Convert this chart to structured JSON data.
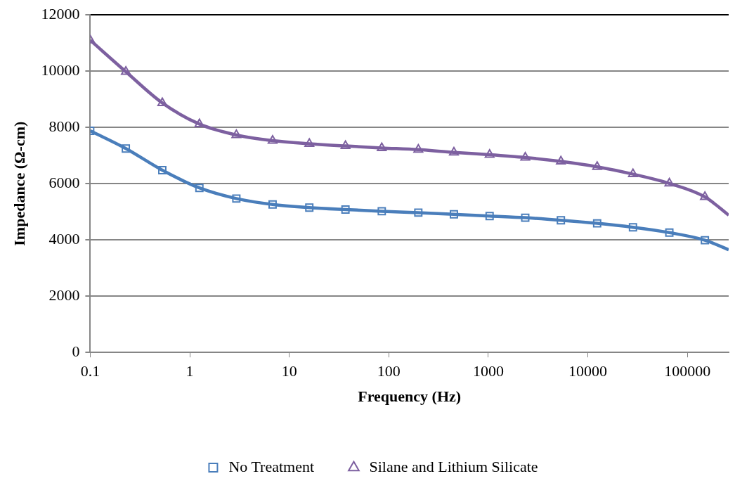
{
  "chart_data": {
    "type": "line",
    "xlabel": "Frequency (Hz)",
    "ylabel": "Impedance (Ω-cm)",
    "x": [
      0.1,
      0.228,
      0.53,
      1.25,
      2.94,
      6.8,
      15.9,
      36.7,
      85,
      198,
      451,
      1030,
      2350,
      5360,
      12400,
      28400,
      65900,
      150000,
      260000
    ],
    "series": [
      {
        "name": "No Treatment",
        "color": "#4a7ebb",
        "marker": "square",
        "values": [
          7880,
          7250,
          6480,
          5850,
          5470,
          5260,
          5150,
          5080,
          5020,
          4970,
          4910,
          4850,
          4790,
          4700,
          4590,
          4450,
          4260,
          3990,
          3650
        ]
      },
      {
        "name": "Silane and Lithium Silicate",
        "color": "#7d60a0",
        "marker": "triangle",
        "values": [
          11100,
          9980,
          8870,
          8120,
          7730,
          7530,
          7420,
          7340,
          7270,
          7210,
          7110,
          7030,
          6930,
          6790,
          6600,
          6340,
          6010,
          5530,
          4880
        ]
      }
    ],
    "log": "x",
    "xlim": [
      0.1,
      260000
    ],
    "xticks": [
      0.1,
      1,
      10,
      100,
      1000,
      10000,
      100000
    ],
    "ylim": [
      0,
      12000
    ],
    "yticks": [
      0,
      2000,
      4000,
      6000,
      8000,
      10000,
      12000
    ],
    "grid": "y",
    "legend": "bottom",
    "line_style": "solid"
  }
}
